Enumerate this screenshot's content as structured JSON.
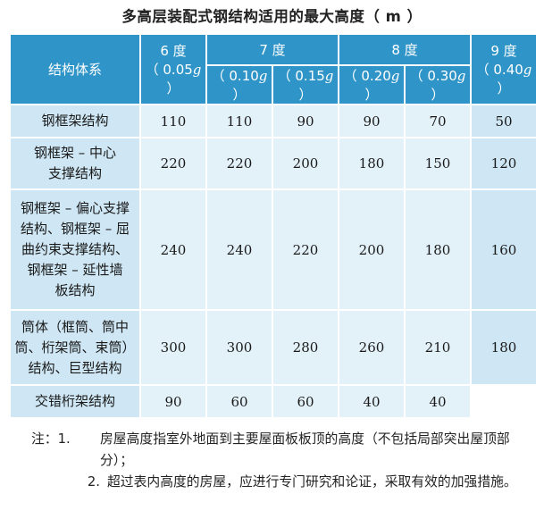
{
  "title": "多高层装配式钢结构适用的最大高度（ m ）",
  "header": {
    "system": "结构体系",
    "deg6": "6 度",
    "deg6_acc_pre": "（ 0.05",
    "deg7": "7 度",
    "deg7a_pre": "（ 0.10",
    "deg7b_pre": "（ 0.15",
    "deg8": "8 度",
    "deg8a_pre": "（ 0.20",
    "deg8b_pre": "（ 0.30",
    "deg9": "9 度",
    "deg9_acc_pre": "（ 0.40",
    "g": "g",
    "close": " ）"
  },
  "rows": [
    {
      "name": "钢框架结构",
      "v": [
        "110",
        "110",
        "90",
        "90",
        "70",
        "50"
      ]
    },
    {
      "name": "钢框架 – 中心\n支撑结构",
      "v": [
        "220",
        "220",
        "200",
        "180",
        "150",
        "120"
      ]
    },
    {
      "name": "钢框架 – 偏心支撑\n结构、钢框架 – 屈\n曲约束支撑结构、\n钢框架 – 延性墙\n板结构",
      "v": [
        "240",
        "240",
        "220",
        "200",
        "180",
        "160"
      ]
    },
    {
      "name": "筒体（框筒、筒中\n筒、桁架筒、束筒）\n结构、巨型结构",
      "v": [
        "300",
        "300",
        "280",
        "260",
        "210",
        "180"
      ]
    },
    {
      "name": "交错桁架结构",
      "v": [
        "90",
        "60",
        "60",
        "40",
        "40",
        ""
      ]
    }
  ],
  "notes": {
    "n1_lead": "注：1.",
    "n1_text": "房屋高度指室外地面到主要屋面板板顶的高度（不包括局部突出屋顶部分）；",
    "n2_lead": "2.",
    "n2_text": "超过表内高度的房屋，应进行专门研究和论证，采取有效的加强措施。"
  },
  "colors": {
    "header_bg": "#2f94c7",
    "label_bg": "#cfe7f4",
    "cell_bg": "#e3f1f9"
  }
}
